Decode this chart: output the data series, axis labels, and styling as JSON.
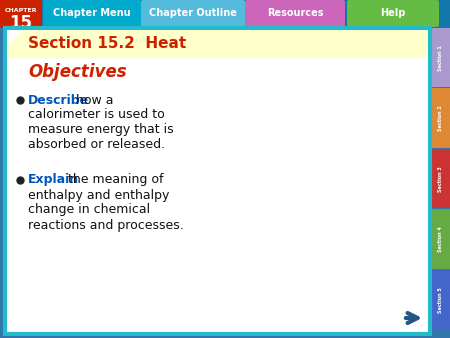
{
  "title": "Section 15.2  Heat",
  "objectives_label": "Objectives",
  "bullet1_keyword": "Describe",
  "bullet1_rest": " how a\ncalorimeter is used to\nmeasure energy that is\nabsorbed or released.",
  "bullet2_keyword": "Explain",
  "bullet2_rest": " the meaning of\nenthalpy and enthalpy\nchange in chemical\nreactions and processes.",
  "chapter_label": "CHAPTER",
  "chapter_number": "15",
  "nav_buttons": [
    "Chapter Menu",
    "Chapter Outline",
    "Resources",
    "Help"
  ],
  "nav_colors": [
    "#00aacc",
    "#55bbdd",
    "#cc66bb",
    "#66bb44"
  ],
  "top_bar_bg": "#1177aa",
  "chapter_box_bg": "#cc2200",
  "section_header_bg": "#ffffcc",
  "section_header_color": "#cc2200",
  "objectives_color": "#cc2200",
  "keyword_color": "#0055bb",
  "body_color": "#111111",
  "main_bg": "#ffffff",
  "side_tab_colors": [
    "#aa99cc",
    "#dd8833",
    "#cc3333",
    "#66aa44",
    "#4466cc"
  ],
  "side_tab_labels": [
    "Section 1",
    "Section 2",
    "Section 3",
    "Section 4",
    "Section 5"
  ],
  "outer_bg": "#3377aa",
  "arrow_color": "#225588",
  "figsize": [
    4.5,
    3.38
  ],
  "dpi": 100
}
